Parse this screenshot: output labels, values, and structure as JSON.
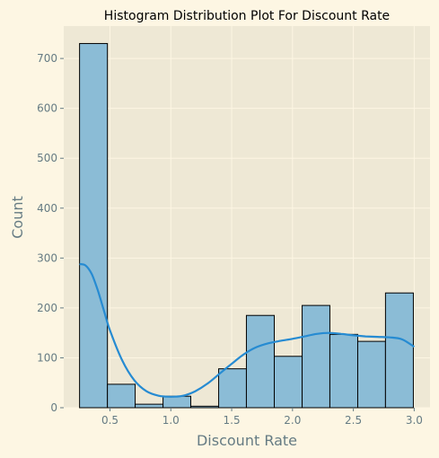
{
  "chart_data": {
    "type": "bar",
    "title": "Histogram Distribution Plot For Discount Rate",
    "xlabel": "Discount Rate",
    "ylabel": "Count",
    "xlim": [
      0.12,
      3.13
    ],
    "ylim": [
      0,
      765
    ],
    "xticks": [
      0.5,
      1.0,
      1.5,
      2.0,
      2.5,
      3.0
    ],
    "xtick_labels": [
      "0.5",
      "1.0",
      "1.5",
      "2.0",
      "2.5",
      "3.0"
    ],
    "yticks": [
      0,
      100,
      200,
      300,
      400,
      500,
      600,
      700
    ],
    "ytick_labels": [
      "0",
      "100",
      "200",
      "300",
      "400",
      "500",
      "600",
      "700"
    ],
    "grid": true,
    "bins": [
      {
        "x0": 0.25,
        "x1": 0.479,
        "count": 730
      },
      {
        "x0": 0.479,
        "x1": 0.707,
        "count": 47
      },
      {
        "x0": 0.707,
        "x1": 0.936,
        "count": 7
      },
      {
        "x0": 0.936,
        "x1": 1.164,
        "count": 23
      },
      {
        "x0": 1.164,
        "x1": 1.393,
        "count": 3
      },
      {
        "x0": 1.393,
        "x1": 1.621,
        "count": 78
      },
      {
        "x0": 1.621,
        "x1": 1.85,
        "count": 185
      },
      {
        "x0": 1.85,
        "x1": 2.079,
        "count": 103
      },
      {
        "x0": 2.079,
        "x1": 2.307,
        "count": 205
      },
      {
        "x0": 2.307,
        "x1": 2.536,
        "count": 147
      },
      {
        "x0": 2.536,
        "x1": 2.764,
        "count": 133
      },
      {
        "x0": 2.764,
        "x1": 2.993,
        "count": 230
      }
    ],
    "kde": {
      "x": [
        0.25,
        0.3,
        0.35,
        0.4,
        0.45,
        0.5,
        0.6,
        0.7,
        0.8,
        0.9,
        1.0,
        1.1,
        1.2,
        1.3,
        1.4,
        1.5,
        1.6,
        1.7,
        1.8,
        1.9,
        2.0,
        2.1,
        2.2,
        2.3,
        2.4,
        2.5,
        2.6,
        2.7,
        2.8,
        2.9,
        3.0
      ],
      "y": [
        288,
        285,
        268,
        235,
        195,
        155,
        95,
        55,
        33,
        24,
        22,
        24,
        33,
        48,
        68,
        88,
        107,
        121,
        129,
        134,
        138,
        143,
        148,
        150,
        148,
        145,
        143,
        142,
        141,
        137,
        122
      ]
    },
    "colors": {
      "bar_fill": "#8bbcd6",
      "bar_edge": "#000000",
      "kde_line": "#268bd2",
      "plot_bg": "#eee8d5",
      "grid": "#fdf6e3"
    }
  }
}
